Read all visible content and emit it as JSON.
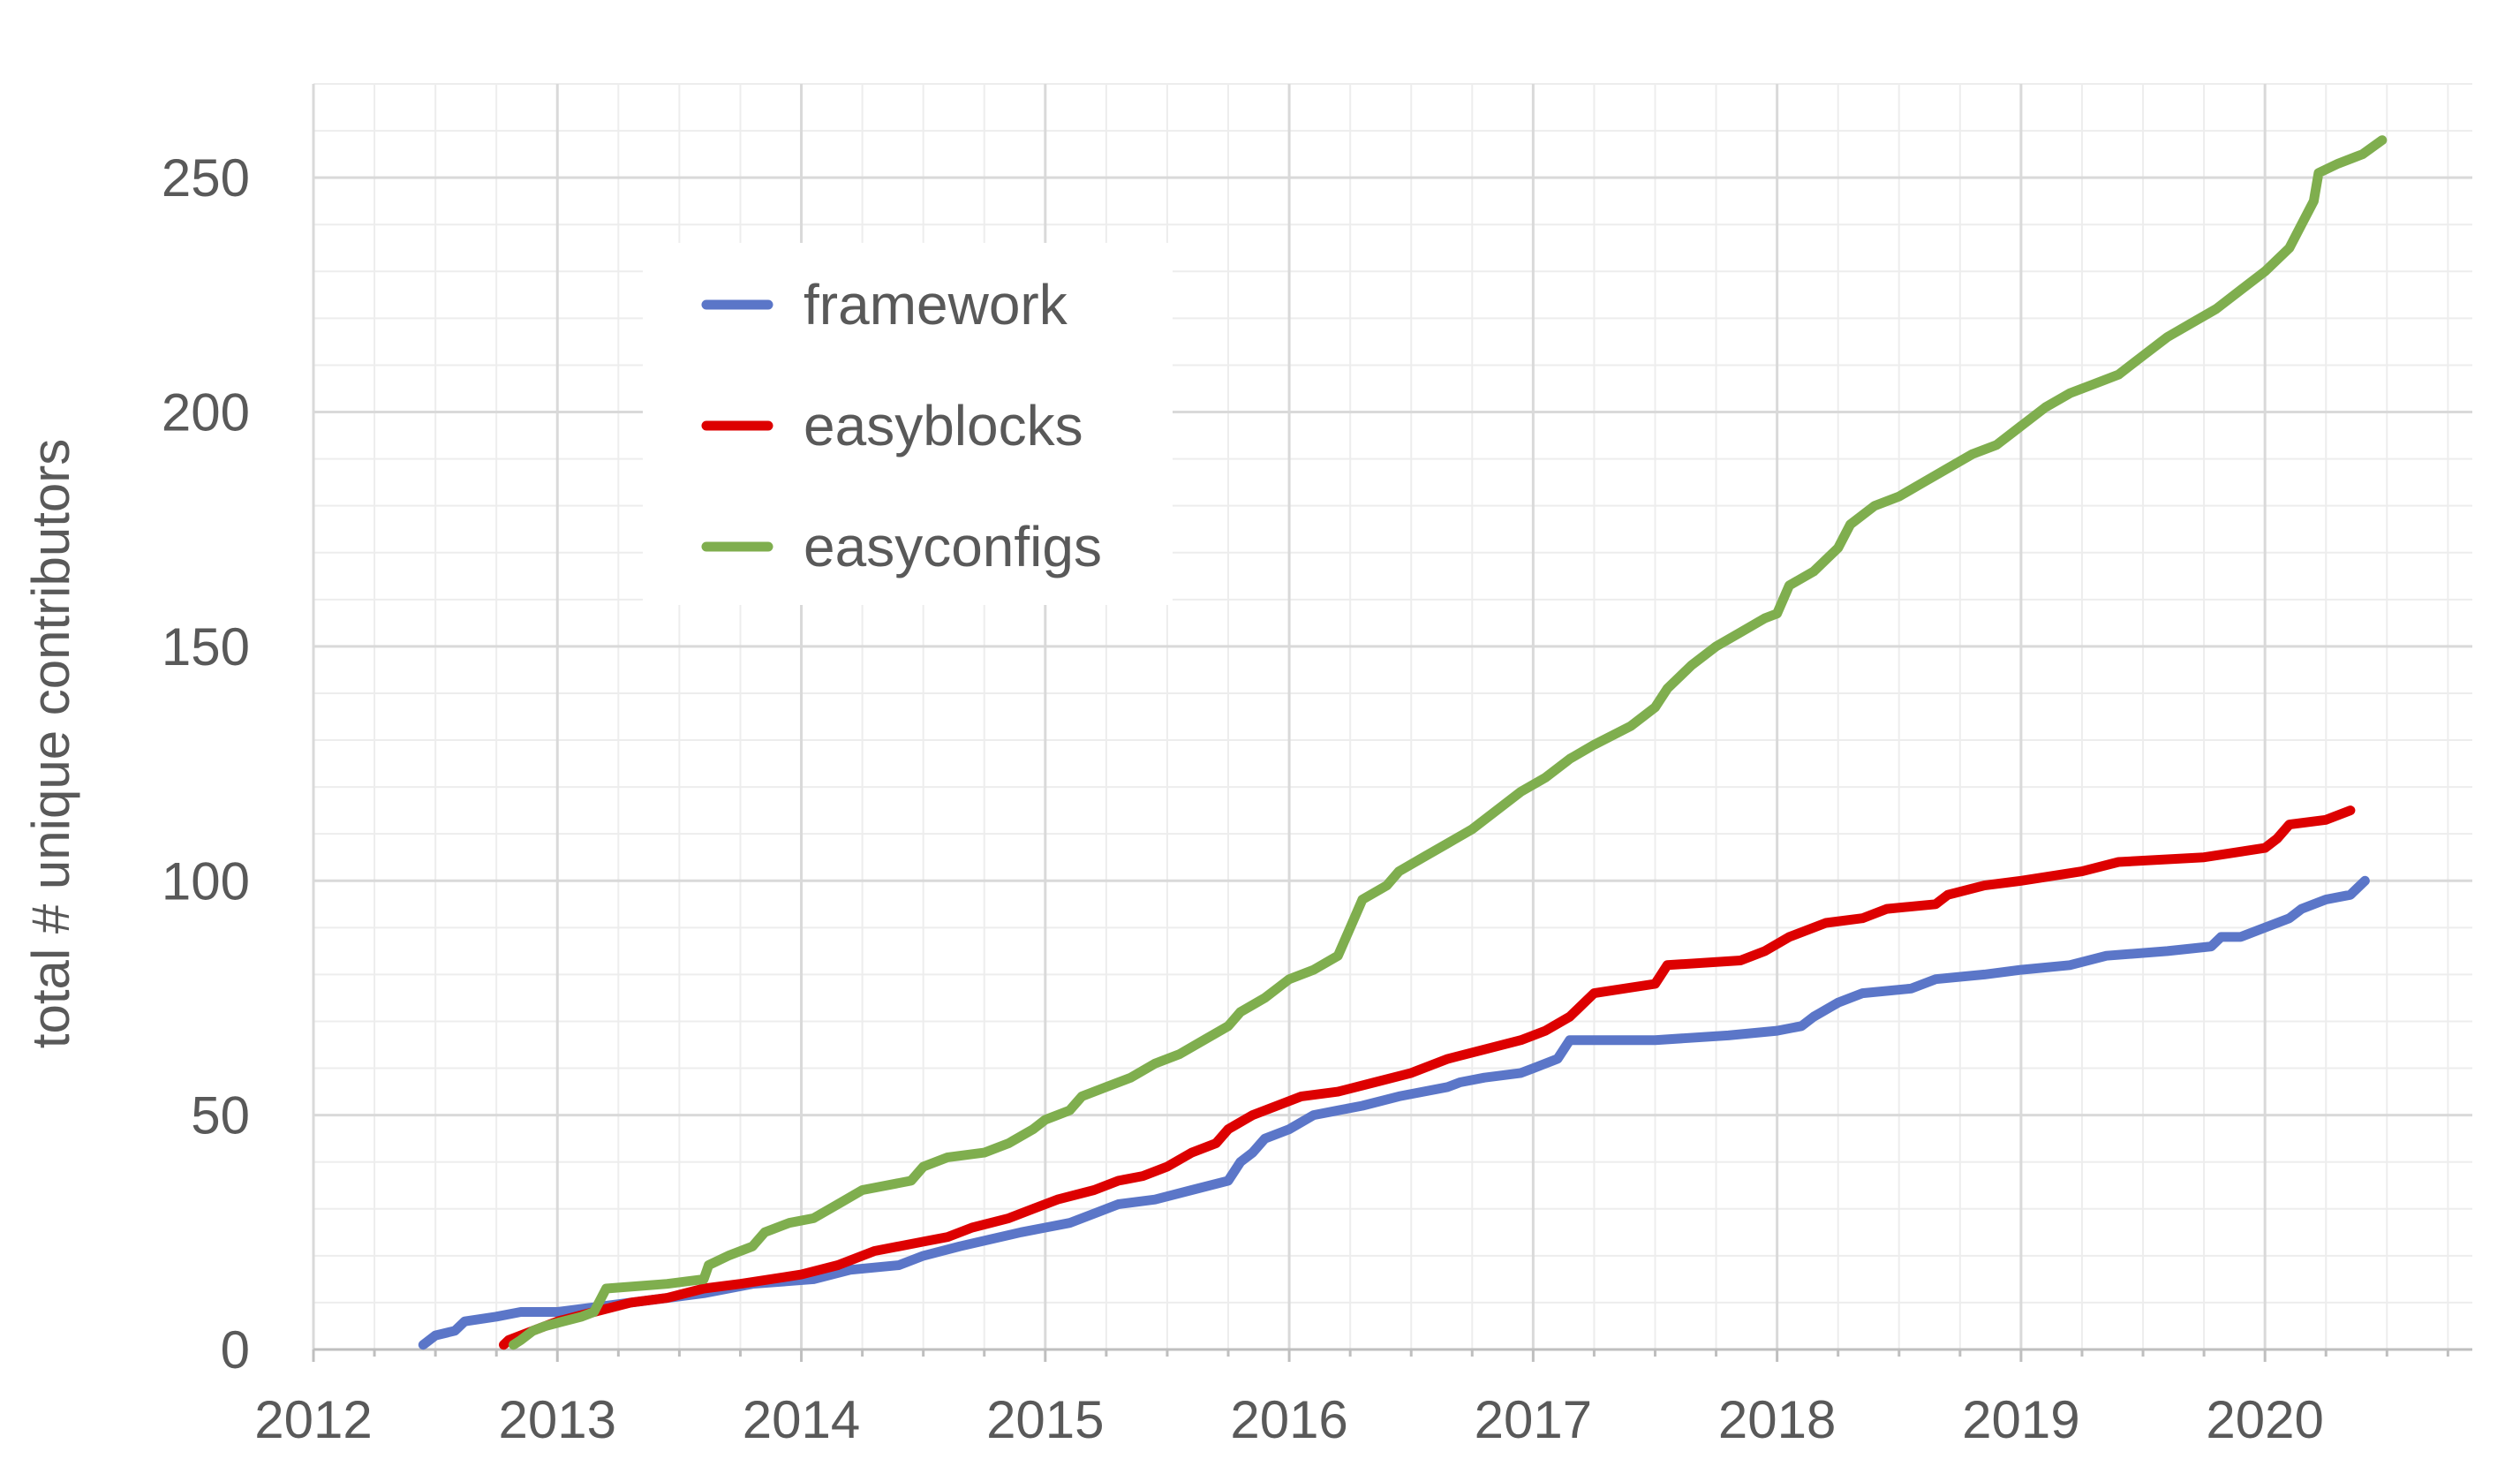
{
  "chart_data": {
    "type": "line",
    "title": "",
    "xlabel": "",
    "ylabel": "total # unique contributors",
    "xlim": [
      2012,
      2020.85
    ],
    "ylim": [
      0,
      270
    ],
    "x_ticks": [
      "2012",
      "2013",
      "2014",
      "2015",
      "2016",
      "2017",
      "2018",
      "2019",
      "2020"
    ],
    "y_ticks": [
      "0",
      "50",
      "100",
      "150",
      "200",
      "250"
    ],
    "grid": true,
    "legend_position": "top-left",
    "series": [
      {
        "name": "framework",
        "color": "#5B76C8",
        "points": [
          [
            2012.45,
            1
          ],
          [
            2012.5,
            3
          ],
          [
            2012.58,
            4
          ],
          [
            2012.62,
            6
          ],
          [
            2012.75,
            7
          ],
          [
            2012.85,
            8
          ],
          [
            2013.0,
            8
          ],
          [
            2013.3,
            10
          ],
          [
            2013.6,
            12
          ],
          [
            2013.8,
            14
          ],
          [
            2014.05,
            15
          ],
          [
            2014.2,
            17
          ],
          [
            2014.4,
            18
          ],
          [
            2014.5,
            20
          ],
          [
            2014.65,
            22
          ],
          [
            2014.9,
            25
          ],
          [
            2015.0,
            26
          ],
          [
            2015.1,
            27
          ],
          [
            2015.2,
            29
          ],
          [
            2015.3,
            31
          ],
          [
            2015.45,
            32
          ],
          [
            2015.6,
            34
          ],
          [
            2015.75,
            36
          ],
          [
            2015.8,
            40
          ],
          [
            2015.85,
            42
          ],
          [
            2015.9,
            45
          ],
          [
            2016.0,
            47
          ],
          [
            2016.1,
            50
          ],
          [
            2016.2,
            51
          ],
          [
            2016.3,
            52
          ],
          [
            2016.45,
            54
          ],
          [
            2016.65,
            56
          ],
          [
            2016.7,
            57
          ],
          [
            2016.8,
            58
          ],
          [
            2016.95,
            59
          ],
          [
            2017.0,
            60
          ],
          [
            2017.1,
            62
          ],
          [
            2017.15,
            66
          ],
          [
            2017.5,
            66
          ],
          [
            2017.8,
            67
          ],
          [
            2018.0,
            68
          ],
          [
            2018.1,
            69
          ],
          [
            2018.15,
            71
          ],
          [
            2018.25,
            74
          ],
          [
            2018.35,
            76
          ],
          [
            2018.55,
            77
          ],
          [
            2018.65,
            79
          ],
          [
            2018.85,
            80
          ],
          [
            2019.0,
            81
          ],
          [
            2019.2,
            82
          ],
          [
            2019.35,
            84
          ],
          [
            2019.6,
            85
          ],
          [
            2019.78,
            86
          ],
          [
            2019.82,
            88
          ],
          [
            2019.9,
            88
          ],
          [
            2020.0,
            90
          ],
          [
            2020.1,
            92
          ],
          [
            2020.15,
            94
          ],
          [
            2020.25,
            96
          ],
          [
            2020.35,
            97
          ],
          [
            2020.41,
            100
          ]
        ]
      },
      {
        "name": "easyblocks",
        "color": "#DD0000",
        "points": [
          [
            2012.78,
            1
          ],
          [
            2012.8,
            2
          ],
          [
            2012.9,
            4
          ],
          [
            2013.0,
            6
          ],
          [
            2013.15,
            8
          ],
          [
            2013.3,
            10
          ],
          [
            2013.45,
            11
          ],
          [
            2013.6,
            13
          ],
          [
            2013.75,
            14
          ],
          [
            2014.0,
            16
          ],
          [
            2014.15,
            18
          ],
          [
            2014.3,
            21
          ],
          [
            2014.5,
            23
          ],
          [
            2014.6,
            24
          ],
          [
            2014.7,
            26
          ],
          [
            2014.85,
            28
          ],
          [
            2014.95,
            30
          ],
          [
            2015.05,
            32
          ],
          [
            2015.2,
            34
          ],
          [
            2015.3,
            36
          ],
          [
            2015.4,
            37
          ],
          [
            2015.5,
            39
          ],
          [
            2015.6,
            42
          ],
          [
            2015.7,
            44
          ],
          [
            2015.75,
            47
          ],
          [
            2015.85,
            50
          ],
          [
            2015.95,
            52
          ],
          [
            2016.05,
            54
          ],
          [
            2016.2,
            55
          ],
          [
            2016.35,
            57
          ],
          [
            2016.5,
            59
          ],
          [
            2016.65,
            62
          ],
          [
            2016.8,
            64
          ],
          [
            2016.95,
            66
          ],
          [
            2017.05,
            68
          ],
          [
            2017.15,
            71
          ],
          [
            2017.25,
            76
          ],
          [
            2017.5,
            78
          ],
          [
            2017.55,
            82
          ],
          [
            2017.85,
            83
          ],
          [
            2017.95,
            85
          ],
          [
            2018.05,
            88
          ],
          [
            2018.2,
            91
          ],
          [
            2018.35,
            92
          ],
          [
            2018.45,
            94
          ],
          [
            2018.65,
            95
          ],
          [
            2018.7,
            97
          ],
          [
            2018.85,
            99
          ],
          [
            2019.0,
            100
          ],
          [
            2019.25,
            102
          ],
          [
            2019.4,
            104
          ],
          [
            2019.75,
            105
          ],
          [
            2020.0,
            107
          ],
          [
            2020.05,
            109
          ],
          [
            2020.1,
            112
          ],
          [
            2020.25,
            113
          ],
          [
            2020.35,
            115
          ]
        ]
      },
      {
        "name": "easyconfigs",
        "color": "#7FAE4E",
        "points": [
          [
            2012.82,
            1
          ],
          [
            2012.85,
            2
          ],
          [
            2012.9,
            4
          ],
          [
            2012.95,
            5
          ],
          [
            2013.1,
            7
          ],
          [
            2013.15,
            8
          ],
          [
            2013.2,
            13
          ],
          [
            2013.45,
            14
          ],
          [
            2013.6,
            15
          ],
          [
            2013.62,
            18
          ],
          [
            2013.7,
            20
          ],
          [
            2013.8,
            22
          ],
          [
            2013.85,
            25
          ],
          [
            2013.95,
            27
          ],
          [
            2014.05,
            28
          ],
          [
            2014.15,
            31
          ],
          [
            2014.25,
            34
          ],
          [
            2014.45,
            36
          ],
          [
            2014.5,
            39
          ],
          [
            2014.6,
            41
          ],
          [
            2014.75,
            42
          ],
          [
            2014.85,
            44
          ],
          [
            2014.95,
            47
          ],
          [
            2015.0,
            49
          ],
          [
            2015.1,
            51
          ],
          [
            2015.15,
            54
          ],
          [
            2015.25,
            56
          ],
          [
            2015.35,
            58
          ],
          [
            2015.45,
            61
          ],
          [
            2015.55,
            63
          ],
          [
            2015.65,
            66
          ],
          [
            2015.75,
            69
          ],
          [
            2015.8,
            72
          ],
          [
            2015.9,
            75
          ],
          [
            2015.95,
            77
          ],
          [
            2016.0,
            79
          ],
          [
            2016.1,
            81
          ],
          [
            2016.2,
            84
          ],
          [
            2016.25,
            90
          ],
          [
            2016.3,
            96
          ],
          [
            2016.4,
            99
          ],
          [
            2016.45,
            102
          ],
          [
            2016.55,
            105
          ],
          [
            2016.65,
            108
          ],
          [
            2016.75,
            111
          ],
          [
            2016.85,
            115
          ],
          [
            2016.95,
            119
          ],
          [
            2017.05,
            122
          ],
          [
            2017.15,
            126
          ],
          [
            2017.25,
            129
          ],
          [
            2017.4,
            133
          ],
          [
            2017.5,
            137
          ],
          [
            2017.55,
            141
          ],
          [
            2017.65,
            146
          ],
          [
            2017.75,
            150
          ],
          [
            2017.85,
            153
          ],
          [
            2017.95,
            156
          ],
          [
            2018.0,
            157
          ],
          [
            2018.05,
            163
          ],
          [
            2018.15,
            166
          ],
          [
            2018.25,
            171
          ],
          [
            2018.3,
            176
          ],
          [
            2018.4,
            180
          ],
          [
            2018.5,
            182
          ],
          [
            2018.6,
            185
          ],
          [
            2018.7,
            188
          ],
          [
            2018.8,
            191
          ],
          [
            2018.9,
            193
          ],
          [
            2019.0,
            197
          ],
          [
            2019.1,
            201
          ],
          [
            2019.2,
            204
          ],
          [
            2019.3,
            206
          ],
          [
            2019.4,
            208
          ],
          [
            2019.5,
            212
          ],
          [
            2019.6,
            216
          ],
          [
            2019.7,
            219
          ],
          [
            2019.8,
            222
          ],
          [
            2019.9,
            226
          ],
          [
            2020.0,
            230
          ],
          [
            2020.1,
            235
          ],
          [
            2020.15,
            240
          ],
          [
            2020.2,
            245
          ],
          [
            2020.22,
            251
          ],
          [
            2020.3,
            253
          ],
          [
            2020.4,
            255
          ],
          [
            2020.48,
            258
          ]
        ]
      }
    ]
  }
}
